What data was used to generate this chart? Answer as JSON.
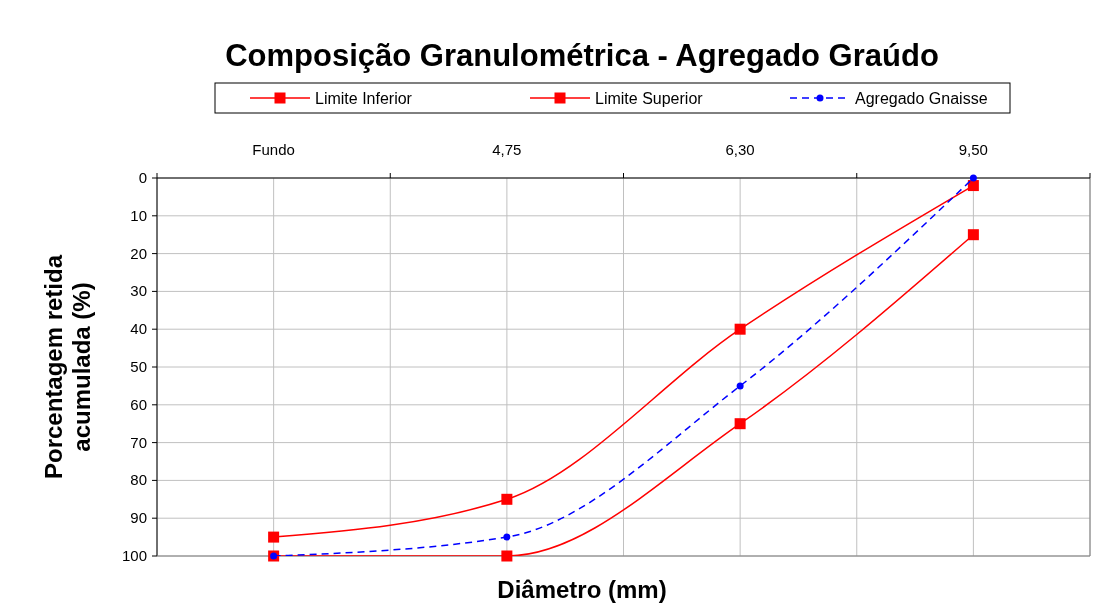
{
  "chart_data": {
    "type": "line",
    "title": "Composição Granulométrica - Agregado Graúdo",
    "xlabel": "Diâmetro (mm)",
    "ylabel": "Porcentagem retida acumulada (%)",
    "categories": [
      "Fundo",
      "4,75",
      "6,30",
      "9,50"
    ],
    "series": [
      {
        "name": "Limite Inferior",
        "color": "#ff0000",
        "values": [
          95,
          85,
          40,
          2
        ],
        "marker": "square",
        "line_style": "solid"
      },
      {
        "name": "Limite Superior",
        "color": "#ff0000",
        "values": [
          100,
          100,
          65,
          15
        ],
        "marker": "square",
        "line_style": "solid"
      },
      {
        "name": "Agregado Gnaisse",
        "color": "#0000ff",
        "values": [
          100,
          95,
          55,
          0
        ],
        "marker": "circle",
        "line_style": "dashed"
      }
    ],
    "ylim": [
      100,
      0
    ],
    "yticks": [
      0,
      10,
      20,
      30,
      40,
      50,
      60,
      70,
      80,
      90,
      100
    ],
    "grid": true,
    "legend": "top"
  }
}
